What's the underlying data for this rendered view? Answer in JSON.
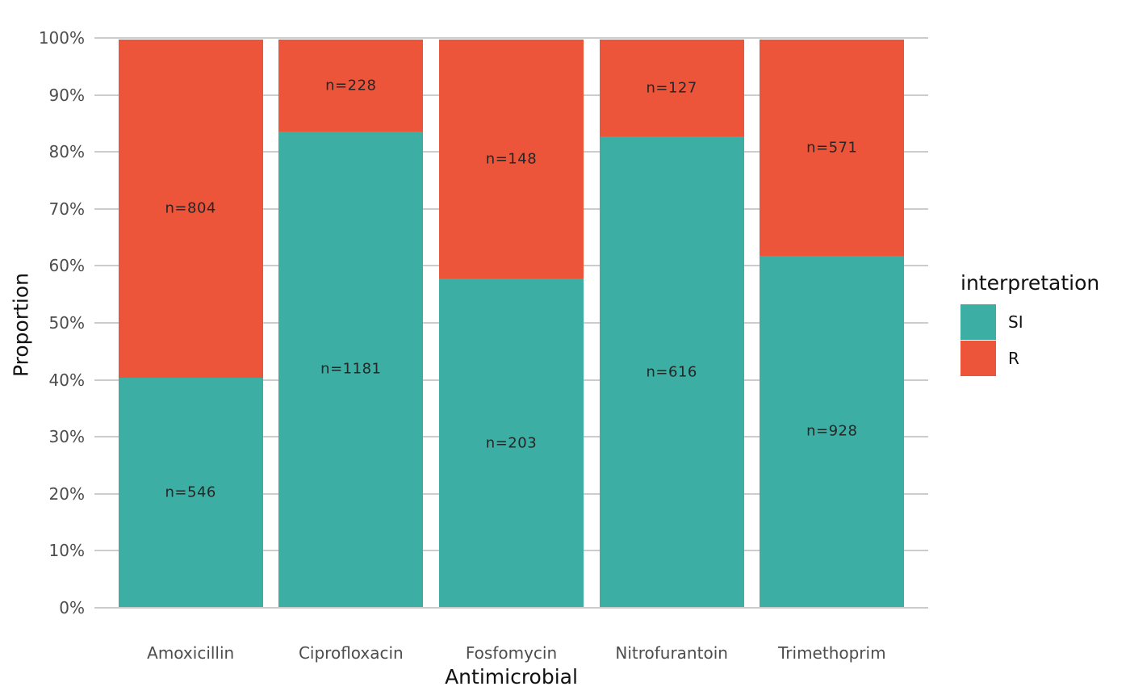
{
  "chart_data": {
    "type": "bar",
    "stacked": true,
    "normalized": "percent",
    "xlabel": "Antimicrobial",
    "ylabel": "Proportion",
    "categories": [
      "Amoxicillin",
      "Ciprofloxacin",
      "Fosfomycin",
      "Nitrofurantoin",
      "Trimethoprim"
    ],
    "series": [
      {
        "name": "SI",
        "color": "#3CAEA3",
        "counts": [
          546,
          1181,
          203,
          616,
          928
        ],
        "labels": [
          "n=546",
          "n=1181",
          "n=203",
          "n=616",
          "n=928"
        ],
        "percent_of_total": [
          40.4,
          83.8,
          57.8,
          82.9,
          61.9
        ]
      },
      {
        "name": "R",
        "color": "#ED553B",
        "counts": [
          804,
          228,
          148,
          127,
          571
        ],
        "labels": [
          "n=804",
          "n=228",
          "n=148",
          "n=127",
          "n=571"
        ],
        "percent_of_total": [
          59.6,
          16.2,
          42.2,
          17.1,
          38.1
        ]
      }
    ],
    "ylim": [
      0,
      100
    ],
    "ytick_labels": [
      "0%",
      "10%",
      "20%",
      "30%",
      "40%",
      "50%",
      "60%",
      "70%",
      "80%",
      "90%",
      "100%"
    ],
    "grid": "horizontal-major",
    "grid_color": "#cccccc",
    "background": "#ffffff",
    "legend_position": "right"
  },
  "legend": {
    "title": "interpretation",
    "items": [
      {
        "label": "SI",
        "color": "#3CAEA3"
      },
      {
        "label": "R",
        "color": "#ED553B"
      }
    ]
  }
}
